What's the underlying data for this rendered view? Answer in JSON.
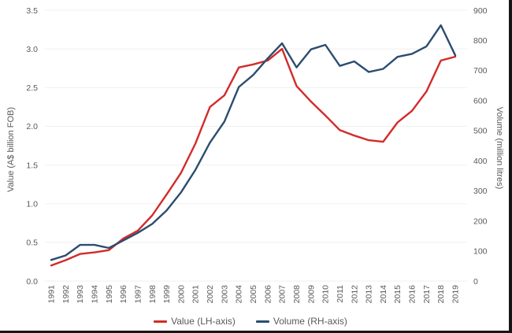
{
  "figure": {
    "background": "#ffffff",
    "edge_border_color": "#161616"
  },
  "chart_data": {
    "type": "line",
    "x": [
      1991,
      1992,
      1993,
      1994,
      1995,
      1996,
      1997,
      1998,
      1999,
      2000,
      2001,
      2002,
      2003,
      2004,
      2005,
      2006,
      2007,
      2008,
      2009,
      2010,
      2011,
      2012,
      2013,
      2014,
      2015,
      2016,
      2017,
      2018,
      2019
    ],
    "series": [
      {
        "name": "Value (LH-axis)",
        "axis": "left",
        "color": "#d22b2a",
        "values": [
          0.2,
          0.27,
          0.35,
          0.37,
          0.4,
          0.55,
          0.65,
          0.85,
          1.12,
          1.4,
          1.78,
          2.25,
          2.4,
          2.76,
          2.8,
          2.85,
          3.0,
          2.52,
          2.32,
          2.14,
          1.95,
          1.88,
          1.82,
          1.8,
          2.05,
          2.2,
          2.45,
          2.85,
          2.9
        ]
      },
      {
        "name": "Volume (RH-axis)",
        "axis": "right",
        "color": "#2b4d6f",
        "values": [
          70,
          85,
          120,
          120,
          110,
          135,
          160,
          190,
          235,
          295,
          370,
          460,
          530,
          645,
          685,
          740,
          790,
          710,
          770,
          785,
          715,
          730,
          695,
          705,
          745,
          755,
          780,
          850,
          750
        ]
      }
    ],
    "left_axis": {
      "label": "Value (A$ billion FOB)",
      "min": 0,
      "max": 3.5,
      "ticks": [
        "0.0",
        "0.5",
        "1.0",
        "1.5",
        "2.0",
        "2.5",
        "3.0",
        "3.5"
      ]
    },
    "right_axis": {
      "label": "Volume (million litres)",
      "min": 0,
      "max": 900,
      "ticks": [
        "0",
        "100",
        "200",
        "300",
        "400",
        "500",
        "600",
        "700",
        "800",
        "900"
      ]
    },
    "x_axis": {
      "tick_rotation_deg": -90
    },
    "grid": {
      "horizontal": true,
      "color": "#efefef"
    },
    "legend_position": "bottom-center",
    "tick_label_color": "#595959"
  }
}
